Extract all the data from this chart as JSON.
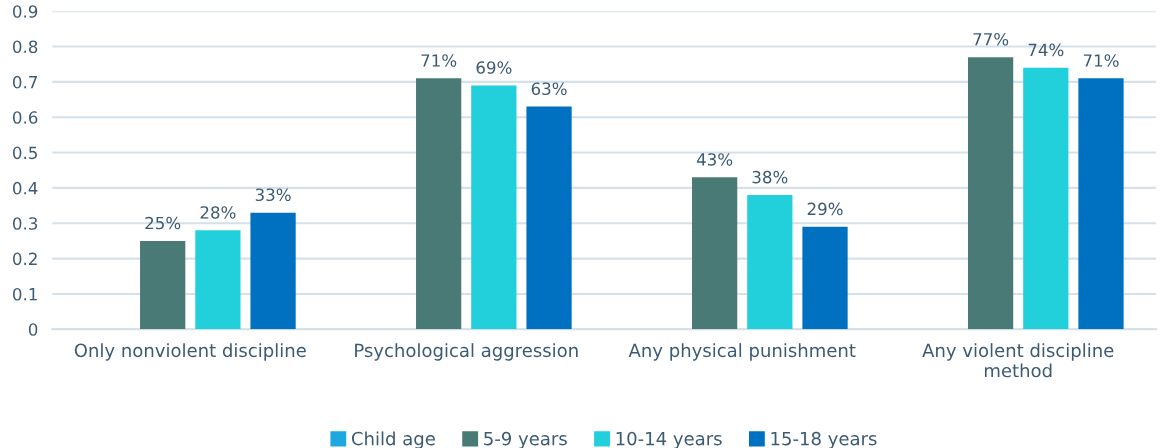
{
  "chart_data": {
    "type": "bar",
    "categories": [
      "Only nonviolent discipline",
      "Psychological aggression",
      "Any physical punishment",
      "Any violent discipline method"
    ],
    "series": [
      {
        "name": "Child age",
        "color": "#1fa8e0",
        "values": [
          null,
          null,
          null,
          null
        ]
      },
      {
        "name": "5-9 years",
        "color": "#497a76",
        "values": [
          0.25,
          0.71,
          0.43,
          0.77
        ],
        "value_labels": [
          "25%",
          "71%",
          "43%",
          "77%"
        ]
      },
      {
        "name": "10-14 years",
        "color": "#22d0dc",
        "values": [
          0.28,
          0.69,
          0.38,
          0.74
        ],
        "value_labels": [
          "28%",
          "69%",
          "38%",
          "74%"
        ]
      },
      {
        "name": "15-18 years",
        "color": "#0070c0",
        "values": [
          0.33,
          0.63,
          0.29,
          0.71
        ],
        "value_labels": [
          "33%",
          "63%",
          "29%",
          "71%"
        ]
      }
    ],
    "ylim": [
      0,
      0.9
    ],
    "yticks": [
      0,
      0.1,
      0.2,
      0.3,
      0.4,
      0.5,
      0.6,
      0.7,
      0.8,
      0.9
    ],
    "grid": "y",
    "legend": "bottom"
  }
}
